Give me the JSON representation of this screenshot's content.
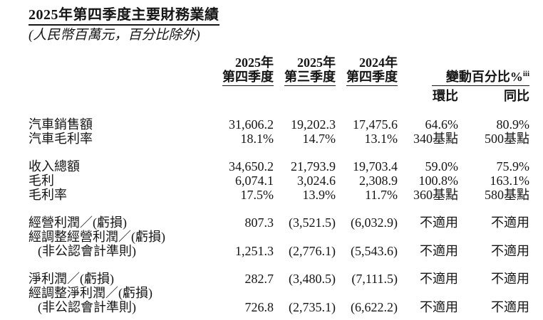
{
  "page": {
    "title": "2025年第四季度主要財務業績",
    "subtitle": "(人民幣百萬元，百分比除外)"
  },
  "table": {
    "header": {
      "columns": [
        {
          "year": "2025年",
          "quarter": "第四季度"
        },
        {
          "year": "2025年",
          "quarter": "第三季度"
        },
        {
          "year": "2024年",
          "quarter": "第四季度"
        }
      ],
      "change_group": {
        "label": "變動百分比%",
        "superscript": "iii",
        "subcolumns": [
          "環比",
          "同比"
        ]
      }
    },
    "groups": [
      {
        "rows": [
          {
            "label": "汽車銷售額",
            "values": [
              "31,606.2",
              "19,202.3",
              "17,475.6",
              "64.6%",
              "80.9%"
            ]
          },
          {
            "label": "汽車毛利率",
            "values": [
              "18.1%",
              "14.7%",
              "13.1%",
              "340基點",
              "500基點"
            ]
          }
        ]
      },
      {
        "rows": [
          {
            "label": "收入總額",
            "values": [
              "34,650.2",
              "21,793.9",
              "19,703.4",
              "59.0%",
              "75.9%"
            ]
          },
          {
            "label": "毛利",
            "values": [
              "6,074.1",
              "3,024.6",
              "2,308.9",
              "100.8%",
              "163.1%"
            ]
          },
          {
            "label": "毛利率",
            "values": [
              "17.5%",
              "13.9%",
              "11.7%",
              "360基點",
              "580基點"
            ]
          }
        ]
      },
      {
        "rows": [
          {
            "label": "經營利潤／(虧損)",
            "values": [
              "807.3",
              "(3,521.5)",
              "(6,032.9)",
              "不適用",
              "不適用"
            ]
          },
          {
            "label": "經調整經營利潤／(虧損)",
            "values": [
              "",
              "",
              "",
              "",
              ""
            ]
          },
          {
            "label": "(非公認會計準則)",
            "indent": true,
            "values": [
              "1,251.3",
              "(2,776.1)",
              "(5,543.6)",
              "不適用",
              "不適用"
            ]
          }
        ]
      },
      {
        "rows": [
          {
            "label": "淨利潤／(虧損)",
            "values": [
              "282.7",
              "(3,480.5)",
              "(7,111.5)",
              "不適用",
              "不適用"
            ]
          },
          {
            "label": "經調整淨利潤／(虧損)",
            "values": [
              "",
              "",
              "",
              "",
              ""
            ]
          },
          {
            "label": "(非公認會計準則)",
            "indent": true,
            "values": [
              "726.8",
              "(2,735.1)",
              "(6,622.2)",
              "不適用",
              "不適用"
            ]
          }
        ]
      }
    ]
  }
}
